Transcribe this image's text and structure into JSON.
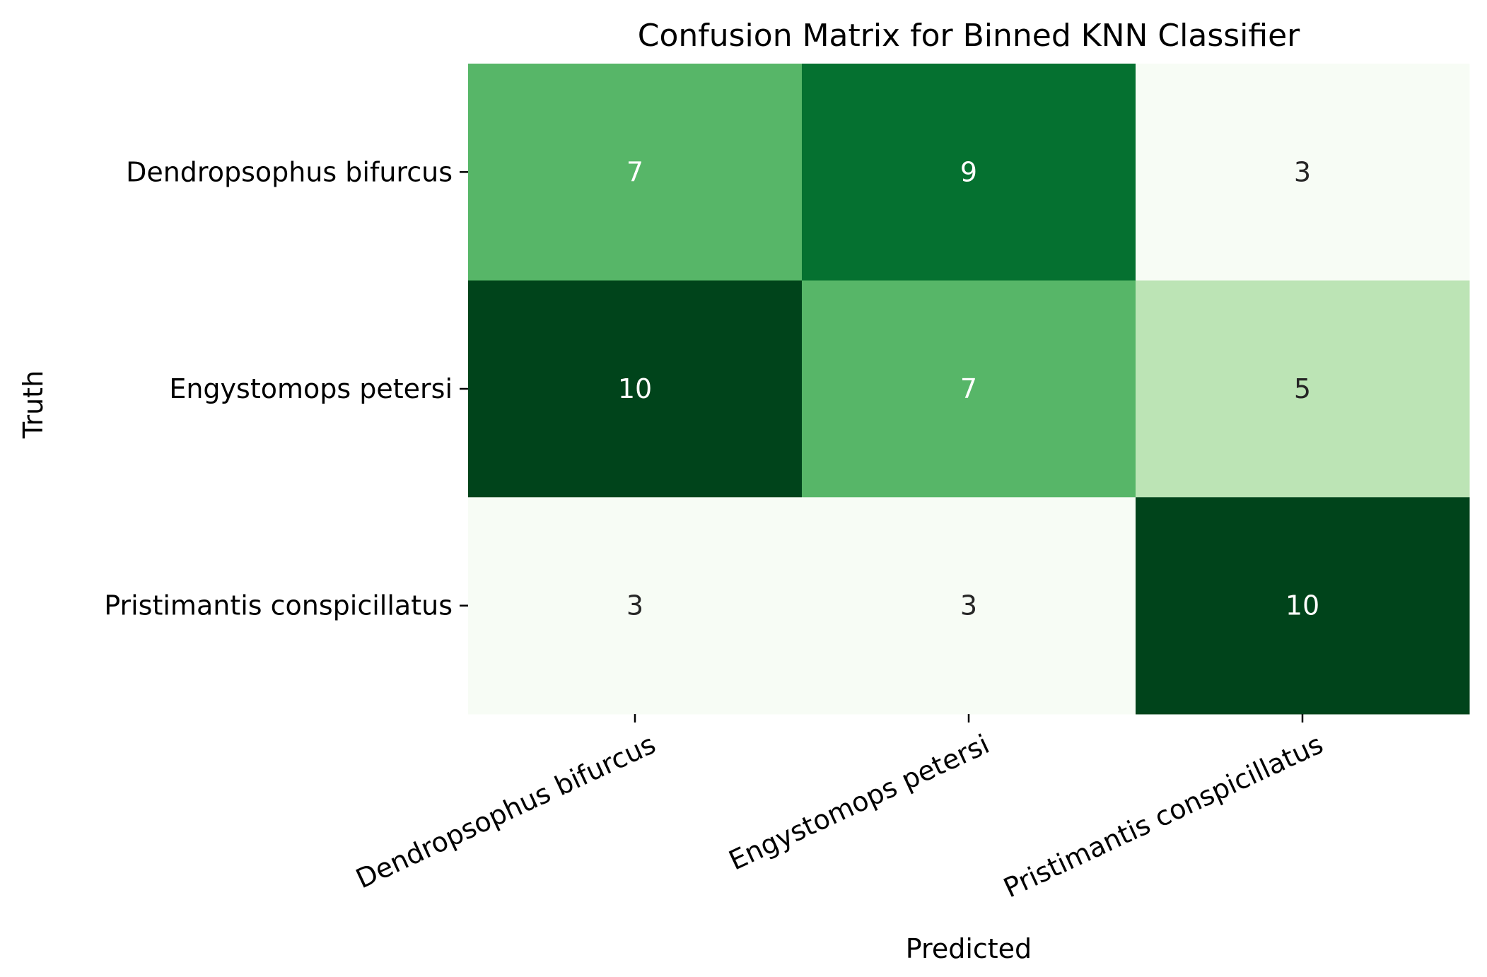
{
  "chart_data": {
    "type": "heatmap",
    "title": "Confusion Matrix for Binned KNN Classifier",
    "xlabel": "Predicted",
    "ylabel": "Truth",
    "x_categories": [
      "Dendropsophus bifurcus",
      "Engystomops petersi",
      "Pristimantis conspicillatus"
    ],
    "y_categories": [
      "Dendropsophus bifurcus",
      "Engystomops petersi",
      "Pristimantis conspicillatus"
    ],
    "values": [
      [
        7,
        9,
        3
      ],
      [
        10,
        7,
        5
      ],
      [
        3,
        3,
        10
      ]
    ],
    "colormap": "Greens",
    "value_range": [
      3,
      10
    ],
    "colorbar": false,
    "grid": false,
    "x_tick_rotation_deg": -25
  },
  "colors": {
    "text_on_dark": "#ffffff",
    "text_on_light": "#262626",
    "axis": "#000000"
  }
}
